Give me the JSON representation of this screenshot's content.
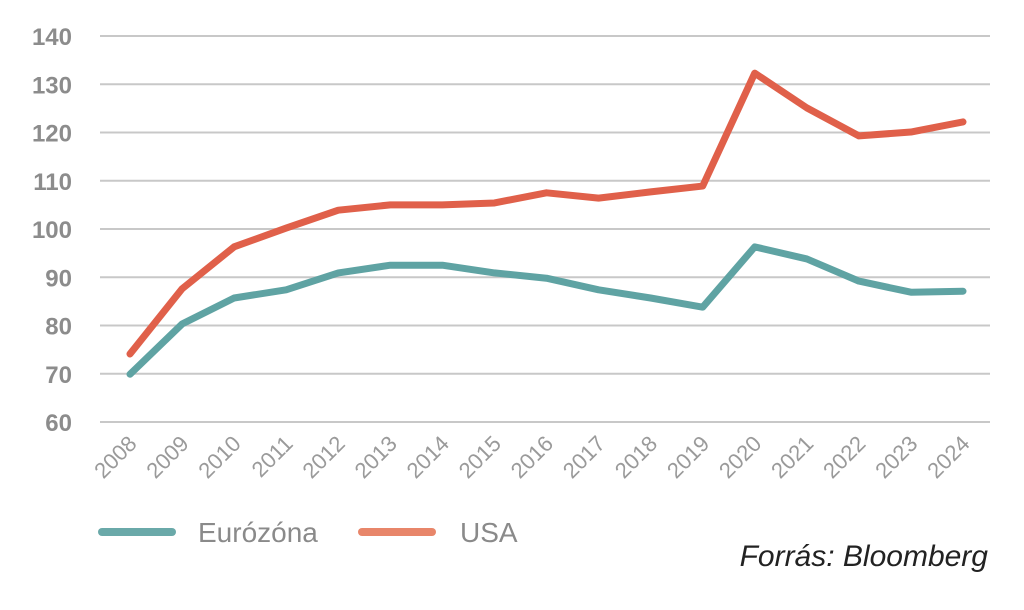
{
  "chart_data": {
    "type": "line",
    "title": "",
    "xlabel": "",
    "ylabel": "",
    "ylim": [
      60,
      140
    ],
    "yticks": [
      "60",
      "70",
      "80",
      "90",
      "100",
      "110",
      "120",
      "130",
      "140"
    ],
    "categories": [
      "2008",
      "2009",
      "2010",
      "2011",
      "2012",
      "2013",
      "2014",
      "2015",
      "2016",
      "2017",
      "2018",
      "2019",
      "2020",
      "2021",
      "2022",
      "2023",
      "2024"
    ],
    "grid": true,
    "legend_position": "bottom-left",
    "series": [
      {
        "name": "Eurózóna",
        "color": "#5fa3a3",
        "legend_color": "#6aa9a9",
        "values": [
          69.9,
          80.3,
          85.7,
          87.4,
          90.9,
          92.5,
          92.5,
          90.9,
          89.8,
          87.4,
          85.7,
          83.8,
          96.3,
          93.8,
          89.2,
          86.9,
          87.1
        ]
      },
      {
        "name": "USA",
        "color": "#e0604a",
        "legend_color": "#e8866a",
        "values": [
          74.1,
          87.6,
          96.3,
          100.2,
          103.9,
          105.0,
          105.0,
          105.4,
          107.5,
          106.4,
          107.7,
          108.9,
          132.3,
          125.1,
          119.3,
          120.1,
          122.2
        ]
      }
    ],
    "annotation": "Forrás: Bloomberg"
  }
}
